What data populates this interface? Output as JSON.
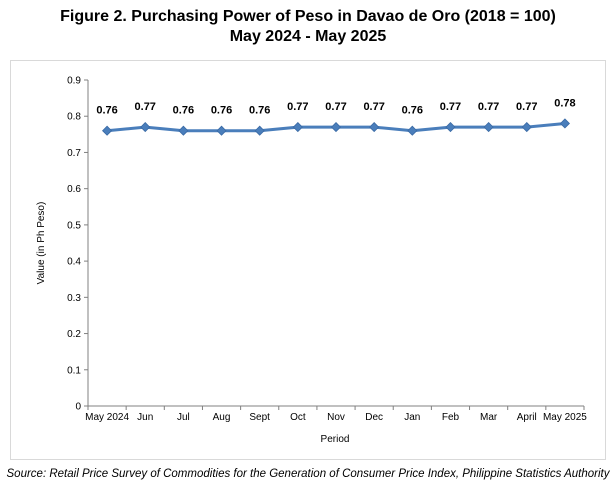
{
  "header": {
    "title_line1": "Figure 2. Purchasing Power of Peso in Davao de Oro (2018 = 100)",
    "title_line2": "May 2024 - May 2025"
  },
  "footer": {
    "source": "Source: Retail Price Survey of Commodities for the Generation of Consumer Price Index, Philippine Statistics Authority"
  },
  "chart_data": {
    "type": "line",
    "categories": [
      "May 2024",
      "Jun",
      "Jul",
      "Aug",
      "Sept",
      "Oct",
      "Nov",
      "Dec",
      "Jan",
      "Feb",
      "Mar",
      "April",
      "May 2025"
    ],
    "values": [
      0.76,
      0.77,
      0.76,
      0.76,
      0.76,
      0.77,
      0.77,
      0.77,
      0.76,
      0.77,
      0.77,
      0.77,
      0.78
    ],
    "data_labels": [
      "0.76",
      "0.77",
      "0.76",
      "0.76",
      "0.76",
      "0.77",
      "0.77",
      "0.77",
      "0.76",
      "0.77",
      "0.77",
      "0.77",
      "0.78"
    ],
    "xlabel": "Period",
    "ylabel": "Value (in Ph Peso)",
    "ylim": [
      0,
      0.9
    ],
    "yticks": [
      "0",
      "0.1",
      "0.2",
      "0.3",
      "0.4",
      "0.5",
      "0.6",
      "0.7",
      "0.8",
      "0.9"
    ],
    "grid": false,
    "legend": "none",
    "colors": {
      "line": "#4a7ebb",
      "marker": "#4a7ebb"
    }
  }
}
